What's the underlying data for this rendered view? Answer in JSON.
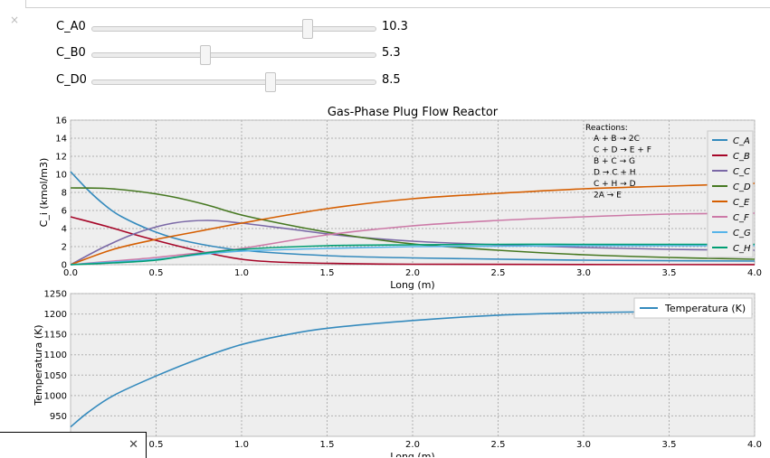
{
  "sliders": [
    {
      "label": "C_A0",
      "value": "10.3",
      "fraction": 0.76
    },
    {
      "label": "C_B0",
      "value": "5.3",
      "fraction": 0.4
    },
    {
      "label": "C_D0",
      "value": "8.5",
      "fraction": 0.63
    }
  ],
  "chart_data": [
    {
      "type": "line",
      "title": "Gas-Phase Plug Flow Reactor",
      "xlabel": "Long (m)",
      "ylabel": "C_i (kmol/m3)",
      "xlim": [
        0,
        4
      ],
      "ylim": [
        0,
        16
      ],
      "xticks": [
        "0.0",
        "0.5",
        "1.0",
        "1.5",
        "2.0",
        "2.5",
        "3.0",
        "3.5",
        "4.0"
      ],
      "yticks": [
        "0",
        "2",
        "4",
        "6",
        "8",
        "10",
        "12",
        "14",
        "16"
      ],
      "grid": true,
      "legend_position": "right",
      "annotation": {
        "title": "Reactions:",
        "lines": [
          "A + B → 2C",
          "C + D → E + F",
          "B + C → G",
          "D → C + H",
          "C + H → D",
          "2A → E"
        ]
      },
      "series": [
        {
          "name": "C_A",
          "color": "#348abd",
          "x": [
            0,
            0.1,
            0.2,
            0.3,
            0.5,
            0.7,
            1.0,
            1.5,
            2.0,
            3.0,
            4.0
          ],
          "y": [
            10.3,
            8.3,
            6.6,
            5.3,
            3.6,
            2.5,
            1.6,
            1.0,
            0.75,
            0.5,
            0.4
          ]
        },
        {
          "name": "C_B",
          "color": "#a60628",
          "x": [
            0,
            0.2,
            0.4,
            0.6,
            0.8,
            1.0,
            1.2,
            1.5,
            2.0,
            3.0,
            4.0
          ],
          "y": [
            5.3,
            4.3,
            3.2,
            2.2,
            1.3,
            0.6,
            0.3,
            0.15,
            0.05,
            0.02,
            0.01
          ]
        },
        {
          "name": "C_C",
          "color": "#7a68a6",
          "x": [
            0,
            0.2,
            0.4,
            0.6,
            0.8,
            1.0,
            1.3,
            1.6,
            2.0,
            2.5,
            3.0,
            3.5,
            4.0
          ],
          "y": [
            0,
            2.0,
            3.6,
            4.6,
            4.9,
            4.6,
            3.9,
            3.2,
            2.6,
            2.2,
            1.9,
            1.7,
            1.6
          ]
        },
        {
          "name": "C_D",
          "color": "#467821",
          "x": [
            0,
            0.2,
            0.4,
            0.6,
            0.8,
            1.0,
            1.3,
            1.6,
            2.0,
            2.5,
            3.0,
            3.5,
            4.0
          ],
          "y": [
            8.5,
            8.45,
            8.1,
            7.5,
            6.6,
            5.5,
            4.3,
            3.3,
            2.3,
            1.6,
            1.1,
            0.8,
            0.6
          ]
        },
        {
          "name": "C_E",
          "color": "#d55e00",
          "x": [
            0,
            0.25,
            0.5,
            0.75,
            1.0,
            1.5,
            2.0,
            2.5,
            3.0,
            3.5,
            4.0
          ],
          "y": [
            0,
            1.7,
            2.8,
            3.7,
            4.6,
            6.2,
            7.3,
            7.9,
            8.4,
            8.7,
            9.0
          ]
        },
        {
          "name": "C_F",
          "color": "#cc79a7",
          "x": [
            0,
            0.25,
            0.5,
            0.75,
            1.0,
            1.5,
            2.0,
            2.5,
            3.0,
            3.5,
            4.0
          ],
          "y": [
            0,
            0.4,
            0.8,
            1.3,
            1.8,
            3.3,
            4.3,
            4.9,
            5.3,
            5.6,
            5.7
          ]
        },
        {
          "name": "C_G",
          "color": "#56b4e9",
          "x": [
            0,
            0.25,
            0.5,
            0.75,
            1.0,
            1.5,
            2.0,
            2.5,
            3.0,
            3.5,
            4.0
          ],
          "y": [
            0,
            0.3,
            0.6,
            1.1,
            1.5,
            1.8,
            2.0,
            2.05,
            2.1,
            2.1,
            2.1
          ]
        },
        {
          "name": "C_H",
          "color": "#009e73",
          "x": [
            0,
            0.25,
            0.5,
            0.75,
            1.0,
            1.5,
            2.0,
            2.5,
            3.0,
            3.5,
            4.0
          ],
          "y": [
            0,
            0.2,
            0.5,
            1.2,
            1.7,
            2.1,
            2.2,
            2.25,
            2.25,
            2.25,
            2.25
          ]
        }
      ]
    },
    {
      "type": "line",
      "title": "",
      "xlabel": "Long (m)",
      "ylabel": "Temperatura (K)",
      "xlim": [
        0,
        4
      ],
      "ylim": [
        900,
        1250
      ],
      "xticks": [
        "0.5",
        "1.0",
        "1.5",
        "2.0",
        "2.5",
        "3.0",
        "3.5",
        "4.0"
      ],
      "yticks": [
        "950",
        "1000",
        "1050",
        "1100",
        "1150",
        "1200",
        "1250"
      ],
      "grid": true,
      "legend_position": "top-right",
      "series": [
        {
          "name": "Temperatura (K)",
          "color": "#348abd",
          "x": [
            0,
            0.1,
            0.25,
            0.5,
            0.75,
            1.0,
            1.25,
            1.5,
            2.0,
            2.5,
            3.0,
            3.5,
            3.7
          ],
          "y": [
            923,
            958,
            1000,
            1048,
            1090,
            1125,
            1148,
            1165,
            1184,
            1197,
            1203,
            1206,
            1207
          ]
        }
      ]
    }
  ]
}
